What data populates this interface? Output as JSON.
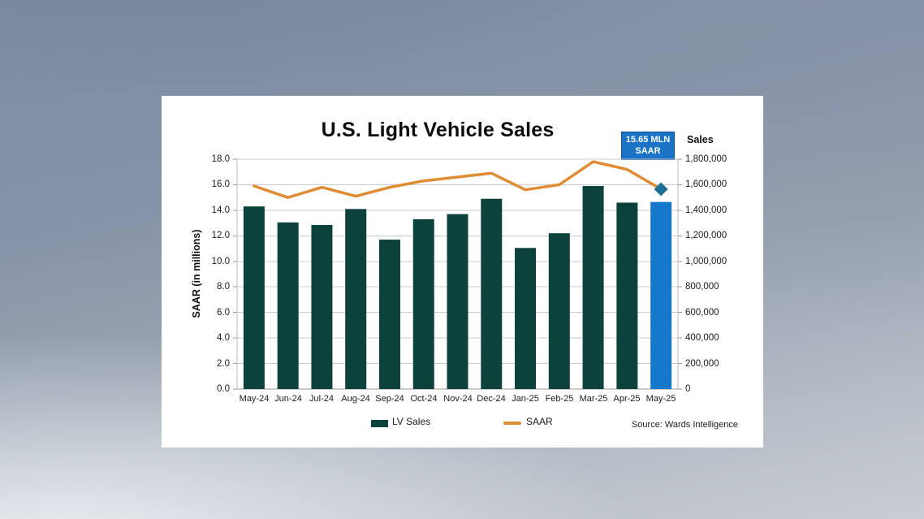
{
  "title": "U.S. Light Vehicle Sales",
  "callout": {
    "line1": "15.65 MLN",
    "line2": "SAAR"
  },
  "left_axis_title": "SAAR (in millions)",
  "right_axis_title": "Sales",
  "legend": {
    "lv_sales": "LV Sales",
    "saar": "SAAR"
  },
  "source": "Source: Wards Intelligence",
  "colors": {
    "bar": "#0d423c",
    "bar_highlight": "#1678ca",
    "line": "#e08c35",
    "marker": "#1c6f94",
    "callout_bg": "#1a73c4",
    "callout_border": "#0d5496",
    "gridline": "#c9ccd0",
    "axis_line": "#9a9a9a",
    "side_line": "#b5b8bc",
    "text": "#1a1a1a"
  },
  "chart_data": {
    "type": "bar",
    "subtype": "combo-bar-line-dual-axis",
    "title": "U.S. Light Vehicle Sales",
    "categories": [
      "May-24",
      "Jun-24",
      "Jul-24",
      "Aug-24",
      "Sep-24",
      "Oct-24",
      "Nov-24",
      "Dec-24",
      "Jan-25",
      "Feb-25",
      "Mar-25",
      "Apr-25",
      "May-25"
    ],
    "series": [
      {
        "name": "LV Sales",
        "render": "bar",
        "axis": "right",
        "unit": "millions (right axis shows equivalent units, value x 100,000)",
        "values": [
          14.3,
          13.05,
          12.85,
          14.1,
          11.7,
          13.3,
          13.7,
          14.9,
          11.05,
          12.2,
          15.9,
          14.6,
          14.65
        ]
      },
      {
        "name": "SAAR",
        "render": "line",
        "axis": "left",
        "unit": "millions",
        "values": [
          15.9,
          15.0,
          15.8,
          15.1,
          15.8,
          16.3,
          16.6,
          16.9,
          15.6,
          16.0,
          17.8,
          17.2,
          15.65
        ]
      }
    ],
    "highlight_category": "May-25",
    "annotation": {
      "label": "15.65 MLN SAAR",
      "category": "May-25",
      "value": 15.65
    },
    "left_axis": {
      "label": "SAAR (in millions)",
      "min": 0,
      "max": 18,
      "step": 2,
      "tick_format": "0.0"
    },
    "right_axis": {
      "label": "Sales",
      "min": 0,
      "max": 1800000,
      "step": 200000,
      "tick_format": "#,##0"
    },
    "grid": "horizontal",
    "legend_position": "bottom",
    "source": "Source: Wards Intelligence"
  }
}
